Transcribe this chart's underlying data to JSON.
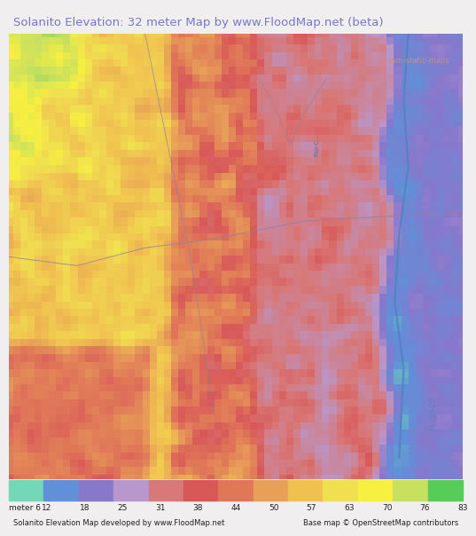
{
  "title": "Solanito Elevation: 32 meter Map by www.FloodMap.net (beta)",
  "title_color": "#7777cc",
  "background_color": "#f0eeee",
  "colorbar_labels": [
    "meter 6",
    "12",
    "18",
    "25",
    "31",
    "38",
    "44",
    "50",
    "57",
    "63",
    "70",
    "76",
    "83"
  ],
  "colorbar_colors": [
    "#72d8b8",
    "#6090d8",
    "#8878cc",
    "#b898cc",
    "#d87878",
    "#d85858",
    "#e07858",
    "#e8a058",
    "#f0c050",
    "#f0e050",
    "#f8f040",
    "#c8e060",
    "#58cc58"
  ],
  "footer_left": "Solanito Elevation Map developed by www.FloodMap.net",
  "footer_right": "Base map © OpenStreetMap contributors",
  "osm_credit": "osm-static-maps",
  "figwidth": 5.12,
  "figheight": 5.82
}
